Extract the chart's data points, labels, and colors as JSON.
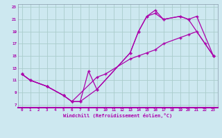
{
  "bg_color": "#cde8f0",
  "grid_color": "#aacccc",
  "line_color": "#aa00aa",
  "xlabel": "Windchill (Refroidissement éolien,°C)",
  "xlim": [
    -0.5,
    23.5
  ],
  "ylim": [
    6.5,
    23.5
  ],
  "xticks": [
    0,
    1,
    2,
    3,
    4,
    5,
    6,
    7,
    8,
    9,
    10,
    11,
    12,
    13,
    14,
    15,
    16,
    17,
    18,
    19,
    20,
    21,
    22,
    23
  ],
  "yticks": [
    7,
    9,
    11,
    13,
    15,
    17,
    19,
    21,
    23
  ],
  "series1_x": [
    0,
    1,
    3,
    5,
    6,
    7,
    8,
    9,
    13,
    14,
    15,
    16,
    17,
    19,
    20,
    22,
    23
  ],
  "series1_y": [
    12,
    11,
    10,
    8.5,
    7.5,
    7.5,
    12.5,
    9.5,
    15.5,
    19,
    21.5,
    22,
    21,
    21.5,
    21,
    17,
    15
  ],
  "series2_x": [
    0,
    1,
    3,
    5,
    6,
    7,
    9,
    13,
    14,
    15,
    16,
    17,
    19,
    20,
    21,
    23
  ],
  "series2_y": [
    12,
    11,
    10,
    8.5,
    7.5,
    7.5,
    9.5,
    15.5,
    19,
    21.5,
    22.5,
    21,
    21.5,
    21,
    21.5,
    15
  ],
  "series3_x": [
    0,
    1,
    3,
    5,
    6,
    9,
    10,
    13,
    14,
    15,
    16,
    17,
    19,
    20,
    21,
    23
  ],
  "series3_y": [
    12,
    11,
    10,
    8.5,
    7.5,
    11.5,
    12,
    14.5,
    15,
    15.5,
    16,
    17,
    18,
    18.5,
    19,
    15
  ]
}
